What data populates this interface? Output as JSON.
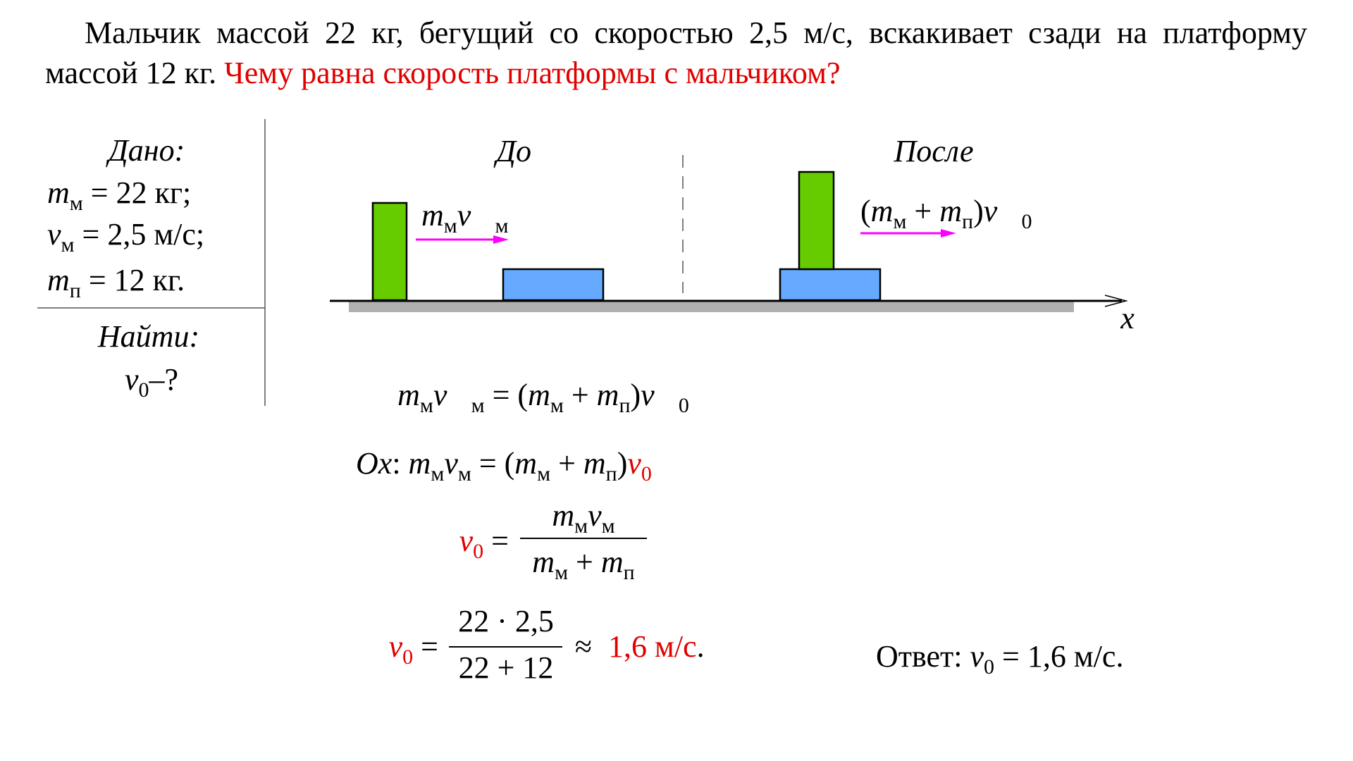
{
  "problem": {
    "statement": "Мальчик массой 22 кг, бегущий со скоростью 2,5 м/с, вскакивает сзади на платформу массой 12 кг.",
    "question": "Чему равна скорость платформы с мальчиком?"
  },
  "given": {
    "title": "Дано:",
    "lines": [
      [
        "m",
        "м",
        " = 22 кг;"
      ],
      [
        "v",
        "м",
        " = 2,5 м/с;"
      ],
      [
        "m",
        "п",
        " = 12 кг."
      ]
    ]
  },
  "find": {
    "title": "Найти:",
    "line": [
      "v",
      "0",
      "–?"
    ]
  },
  "diagram": {
    "before": "До",
    "after": "После",
    "before_label": [
      "m",
      "м",
      "v⃗",
      "м"
    ],
    "after_label": [
      "(",
      "m",
      "м",
      " + ",
      "m",
      "п",
      ")",
      "v⃗",
      "0"
    ],
    "axis": "x"
  },
  "solution": {
    "eq1": [
      "m",
      "м",
      "v⃗",
      "м",
      " = (",
      "m",
      "м",
      " + ",
      "m",
      "п",
      ")",
      "v⃗",
      "0"
    ],
    "eq2": [
      "Ox",
      ": ",
      "m",
      "м",
      "v",
      "м",
      " = (",
      "m",
      "м",
      " + ",
      "m",
      "п",
      ")",
      "v",
      "0"
    ],
    "eq3": {
      "lhs": [
        "v",
        "0",
        " ="
      ],
      "numerator": [
        "m",
        "м",
        "v",
        "м"
      ],
      "denominator": [
        "m",
        "м",
        " + ",
        "m",
        "п"
      ]
    },
    "eq4": {
      "lhs": [
        "v",
        "0",
        " ="
      ],
      "numerator": "22 · 2,5",
      "denominator": "22 + 12",
      "approx": "≈",
      "result": "1,6 м/с",
      "end": "."
    }
  },
  "answer": [
    "Ответ: ",
    "v",
    "0",
    " = 1,6 м/с."
  ]
}
